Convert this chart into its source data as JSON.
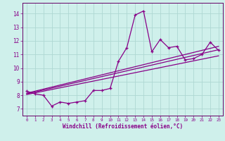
{
  "xlabel": "Windchill (Refroidissement éolien,°C)",
  "bg_color": "#cff0eb",
  "grid_color": "#aed8d2",
  "line_color": "#880088",
  "spine_color": "#660066",
  "x_ticks": [
    0,
    1,
    2,
    3,
    4,
    5,
    6,
    7,
    8,
    9,
    10,
    11,
    12,
    13,
    14,
    15,
    16,
    17,
    18,
    19,
    20,
    21,
    22,
    23
  ],
  "y_ticks": [
    7,
    8,
    9,
    10,
    11,
    12,
    13,
    14
  ],
  "xlim": [
    -0.5,
    23.5
  ],
  "ylim": [
    6.5,
    14.8
  ],
  "series1_x": [
    0,
    1,
    2,
    3,
    4,
    5,
    6,
    7,
    8,
    9,
    10,
    11,
    12,
    13,
    14,
    15,
    16,
    17,
    18,
    19,
    20,
    21,
    22,
    23
  ],
  "series1_y": [
    8.3,
    8.1,
    8.0,
    7.2,
    7.5,
    7.4,
    7.5,
    7.6,
    8.35,
    8.35,
    8.5,
    10.5,
    11.5,
    13.9,
    14.2,
    11.2,
    12.1,
    11.5,
    11.6,
    10.6,
    10.7,
    11.0,
    11.9,
    11.3
  ],
  "trend1_x": [
    0,
    23
  ],
  "trend1_y": [
    8.1,
    11.35
  ],
  "trend2_x": [
    0,
    23
  ],
  "trend2_y": [
    8.05,
    10.9
  ],
  "trend3_x": [
    0,
    23
  ],
  "trend3_y": [
    8.15,
    11.6
  ]
}
